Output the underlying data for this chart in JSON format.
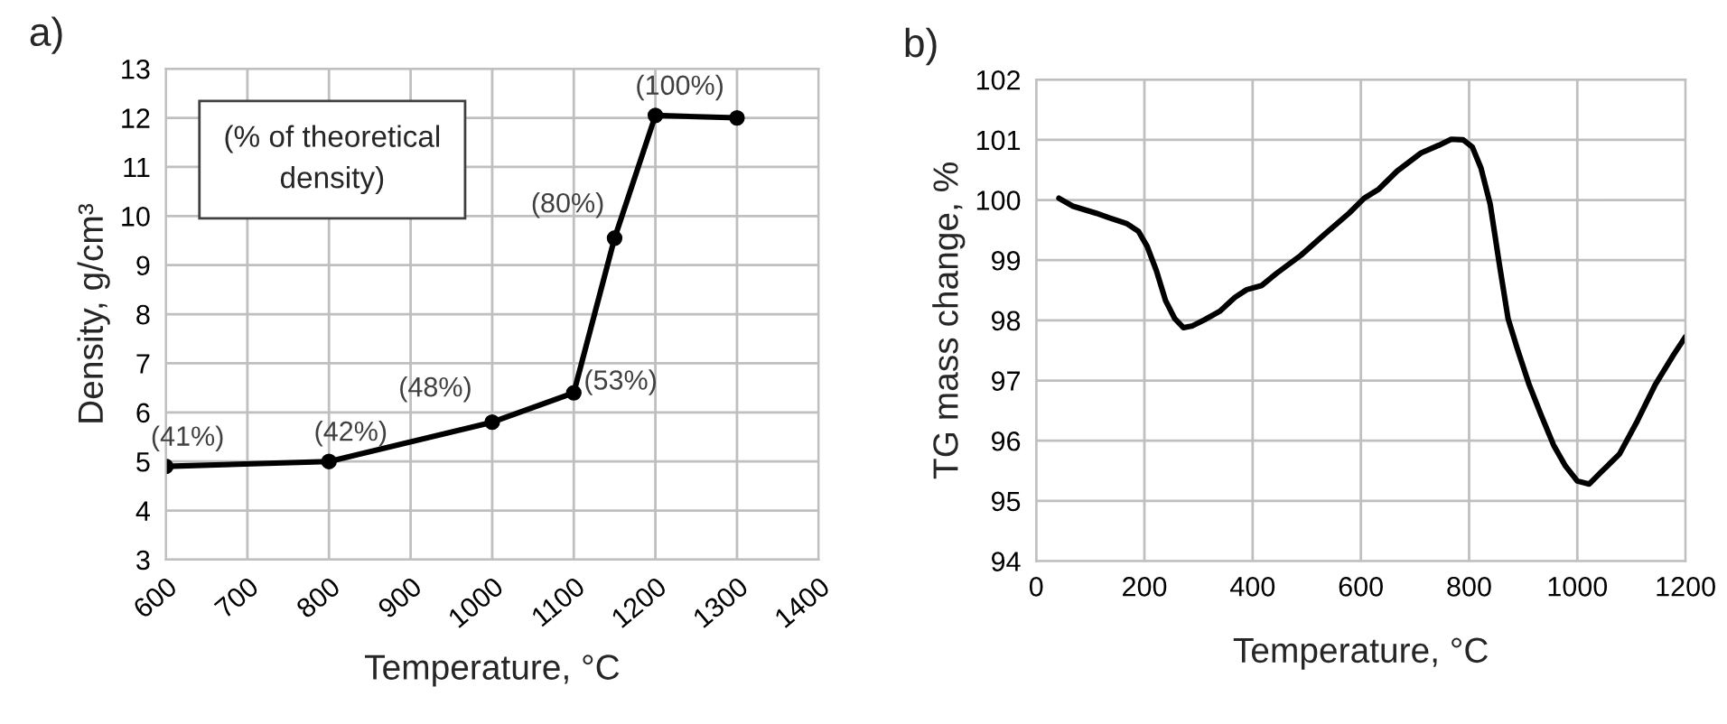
{
  "chart_data": [
    {
      "type": "line",
      "title": "a)",
      "xlabel": "Temperature, °C",
      "ylabel": "Density, g/cm³",
      "annotations": [
        "(% of theoretical density)",
        {
          "text": "(41%)",
          "x": 600,
          "y": 4.9
        },
        {
          "text": "(42%)",
          "x": 800,
          "y": 5.0
        },
        {
          "text": "(48%)",
          "x": 1000,
          "y": 5.8
        },
        {
          "text": "(53%)",
          "x": 1100,
          "y": 6.4
        },
        {
          "text": "(80%)",
          "x": 1150,
          "y": 9.55
        },
        {
          "text": "(100%)",
          "x": 1200,
          "y": 12.05
        }
      ],
      "x": [
        600,
        800,
        1000,
        1100,
        1150,
        1200,
        1300
      ],
      "series": [
        {
          "color": "#000000",
          "values": [
            4.9,
            5.0,
            5.8,
            6.4,
            9.55,
            12.05,
            12.0
          ]
        }
      ],
      "xlim": [
        600,
        1400
      ],
      "xticks": [
        600,
        700,
        800,
        900,
        1000,
        1100,
        1200,
        1300,
        1400
      ],
      "ylim": [
        3,
        13
      ],
      "yticks": [
        3,
        4,
        5,
        6,
        7,
        8,
        9,
        10,
        11,
        12,
        13
      ],
      "grid": true,
      "marker": "circle",
      "line_style": "solid",
      "legend": false
    },
    {
      "type": "line",
      "title": "b)",
      "xlabel": "Temperature, °C",
      "ylabel": "TG mass change, %",
      "x": [
        42,
        67,
        111,
        133,
        167,
        189,
        205,
        222,
        239,
        256,
        272,
        289,
        311,
        339,
        367,
        389,
        417,
        444,
        489,
        533,
        578,
        606,
        633,
        667,
        711,
        744,
        767,
        789,
        806,
        822,
        839,
        856,
        872,
        889,
        911,
        933,
        956,
        978,
        1000,
        1022,
        1044,
        1078,
        1111,
        1144,
        1178,
        1200
      ],
      "series": [
        {
          "color": "#000000",
          "values": [
            100.03,
            99.9,
            99.78,
            99.71,
            99.61,
            99.48,
            99.23,
            98.83,
            98.33,
            98.03,
            97.88,
            97.91,
            98.01,
            98.15,
            98.38,
            98.51,
            98.58,
            98.78,
            99.08,
            99.43,
            99.78,
            100.03,
            100.18,
            100.48,
            100.78,
            100.91,
            101.01,
            101.0,
            100.88,
            100.53,
            99.93,
            98.93,
            98.03,
            97.53,
            96.93,
            96.43,
            95.93,
            95.58,
            95.33,
            95.28,
            95.48,
            95.78,
            96.33,
            96.93,
            97.43,
            97.73
          ]
        }
      ],
      "xlim": [
        0,
        1200
      ],
      "xticks": [
        0,
        200,
        400,
        600,
        800,
        1000,
        1200
      ],
      "ylim": [
        94,
        102
      ],
      "yticks": [
        94,
        95,
        96,
        97,
        98,
        99,
        100,
        101,
        102
      ],
      "grid": true,
      "marker": "none",
      "line_style": "solid",
      "legend": false
    }
  ]
}
